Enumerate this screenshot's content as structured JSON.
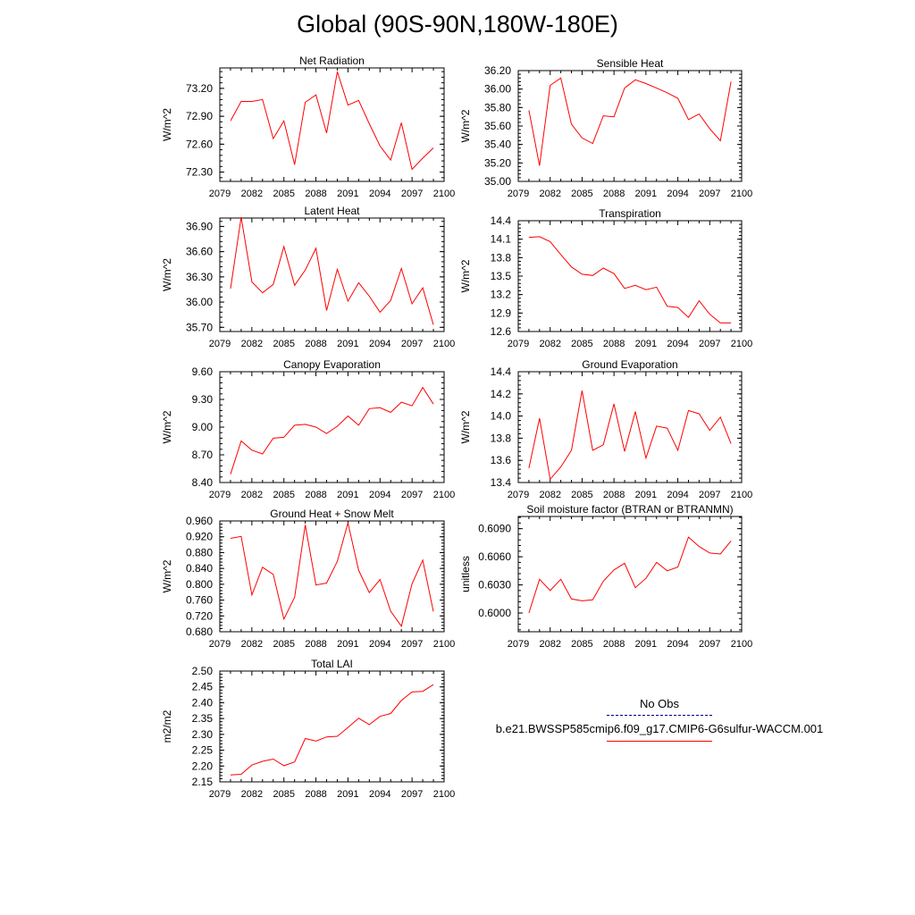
{
  "title": "Global (90S-90N,180W-180E)",
  "series_color": "#ff0000",
  "obs_color": "#00008b",
  "legend": {
    "obs_label": "No Obs",
    "model_label": "b.e21.BWSSP585cmip6.f09_g17.CMIP6-G6sulfur-WACCM.001"
  },
  "chart_data": [
    {
      "type": "line",
      "title": "Net Radiation",
      "ylabel": "W/m^2",
      "xlim": [
        2079,
        2100
      ],
      "ylim": [
        72.2,
        73.42
      ],
      "xticks": [
        "2079",
        "2082",
        "2085",
        "2088",
        "2091",
        "2094",
        "2097",
        "2100"
      ],
      "yticks": [
        "72.30",
        "72.60",
        "72.90",
        "73.20"
      ],
      "x": [
        2080,
        2081,
        2082,
        2083,
        2084,
        2085,
        2086,
        2087,
        2088,
        2089,
        2090,
        2091,
        2092,
        2093,
        2094,
        2095,
        2096,
        2097,
        2098,
        2099
      ],
      "y": [
        72.85,
        73.06,
        73.06,
        73.08,
        72.66,
        72.85,
        72.38,
        73.05,
        73.13,
        72.72,
        73.38,
        73.02,
        73.07,
        72.82,
        72.58,
        72.43,
        72.83,
        72.33,
        72.45,
        72.56
      ]
    },
    {
      "type": "line",
      "title": "Sensible Heat",
      "ylabel": "W/m^2",
      "xlim": [
        2079,
        2100
      ],
      "ylim": [
        35.0,
        36.2
      ],
      "xticks": [
        "2079",
        "2082",
        "2085",
        "2088",
        "2091",
        "2094",
        "2097",
        "2100"
      ],
      "yticks": [
        "35.00",
        "35.20",
        "35.40",
        "35.60",
        "35.80",
        "36.00",
        "36.20"
      ],
      "x": [
        2080,
        2081,
        2082,
        2083,
        2084,
        2085,
        2086,
        2087,
        2088,
        2089,
        2090,
        2091,
        2092,
        2093,
        2094,
        2095,
        2096,
        2097,
        2098,
        2099
      ],
      "y": [
        35.77,
        35.17,
        36.04,
        36.12,
        35.62,
        35.47,
        35.41,
        35.71,
        35.7,
        36.01,
        36.1,
        36.06,
        36.01,
        35.96,
        35.9,
        35.67,
        35.73,
        35.57,
        35.44,
        36.08
      ]
    },
    {
      "type": "line",
      "title": "Latent Heat",
      "ylabel": "W/m^2",
      "xlim": [
        2079,
        2100
      ],
      "ylim": [
        35.65,
        37.0
      ],
      "xticks": [
        "2079",
        "2082",
        "2085",
        "2088",
        "2091",
        "2094",
        "2097",
        "2100"
      ],
      "yticks": [
        "35.70",
        "36.00",
        "36.30",
        "36.60",
        "36.90"
      ],
      "x": [
        2080,
        2081,
        2082,
        2083,
        2084,
        2085,
        2086,
        2087,
        2088,
        2089,
        2090,
        2091,
        2092,
        2093,
        2094,
        2095,
        2096,
        2097,
        2098,
        2099
      ],
      "y": [
        36.16,
        37.01,
        36.24,
        36.11,
        36.21,
        36.66,
        36.2,
        36.38,
        36.64,
        35.9,
        36.39,
        36.01,
        36.23,
        36.07,
        35.88,
        36.02,
        36.4,
        35.98,
        36.17,
        35.73
      ]
    },
    {
      "type": "line",
      "title": "Transpiration",
      "ylabel": "W/m^2",
      "xlim": [
        2079,
        2100
      ],
      "ylim": [
        12.6,
        14.4
      ],
      "xticks": [
        "2079",
        "2082",
        "2085",
        "2088",
        "2091",
        "2094",
        "2097",
        "2100"
      ],
      "yticks": [
        "12.6",
        "12.9",
        "13.2",
        "13.5",
        "13.8",
        "14.1",
        "14.4"
      ],
      "x": [
        2080,
        2081,
        2082,
        2083,
        2084,
        2085,
        2086,
        2087,
        2088,
        2089,
        2090,
        2091,
        2092,
        2093,
        2094,
        2095,
        2096,
        2097,
        2098,
        2099
      ],
      "y": [
        14.13,
        14.14,
        14.06,
        13.85,
        13.65,
        13.53,
        13.51,
        13.63,
        13.54,
        13.3,
        13.35,
        13.28,
        13.32,
        13.01,
        12.99,
        12.83,
        13.1,
        12.88,
        12.74,
        12.74
      ]
    },
    {
      "type": "line",
      "title": "Canopy Evaporation",
      "ylabel": "W/m^2",
      "xlim": [
        2079,
        2100
      ],
      "ylim": [
        8.4,
        9.6
      ],
      "xticks": [
        "2079",
        "2082",
        "2085",
        "2088",
        "2091",
        "2094",
        "2097",
        "2100"
      ],
      "yticks": [
        "8.40",
        "8.70",
        "9.00",
        "9.30",
        "9.60"
      ],
      "x": [
        2080,
        2081,
        2082,
        2083,
        2084,
        2085,
        2086,
        2087,
        2088,
        2089,
        2090,
        2091,
        2092,
        2093,
        2094,
        2095,
        2096,
        2097,
        2098,
        2099
      ],
      "y": [
        8.49,
        8.85,
        8.75,
        8.71,
        8.88,
        8.89,
        9.02,
        9.03,
        9.0,
        8.93,
        9.01,
        9.12,
        9.02,
        9.2,
        9.21,
        9.16,
        9.27,
        9.23,
        9.43,
        9.25
      ]
    },
    {
      "type": "line",
      "title": "Ground Evaporation",
      "ylabel": "W/m^2",
      "xlim": [
        2079,
        2100
      ],
      "ylim": [
        13.4,
        14.4
      ],
      "xticks": [
        "2079",
        "2082",
        "2085",
        "2088",
        "2091",
        "2094",
        "2097",
        "2100"
      ],
      "yticks": [
        "13.4",
        "13.6",
        "13.8",
        "14.0",
        "14.2",
        "14.4"
      ],
      "x": [
        2080,
        2081,
        2082,
        2083,
        2084,
        2085,
        2086,
        2087,
        2088,
        2089,
        2090,
        2091,
        2092,
        2093,
        2094,
        2095,
        2096,
        2097,
        2098,
        2099
      ],
      "y": [
        13.53,
        13.98,
        13.43,
        13.54,
        13.69,
        14.23,
        13.69,
        13.74,
        14.11,
        13.68,
        14.04,
        13.62,
        13.91,
        13.89,
        13.69,
        14.05,
        14.02,
        13.87,
        13.99,
        13.75
      ]
    },
    {
      "type": "line",
      "title": "Ground Heat + Snow Melt",
      "ylabel": "W/m^2",
      "xlim": [
        2079,
        2100
      ],
      "ylim": [
        0.68,
        0.96
      ],
      "xticks": [
        "2079",
        "2082",
        "2085",
        "2088",
        "2091",
        "2094",
        "2097",
        "2100"
      ],
      "yticks": [
        "0.680",
        "0.720",
        "0.760",
        "0.800",
        "0.840",
        "0.880",
        "0.920",
        "0.960"
      ],
      "x": [
        2080,
        2081,
        2082,
        2083,
        2084,
        2085,
        2086,
        2087,
        2088,
        2089,
        2090,
        2091,
        2092,
        2093,
        2094,
        2095,
        2096,
        2097,
        2098,
        2099
      ],
      "y": [
        0.916,
        0.921,
        0.773,
        0.843,
        0.825,
        0.712,
        0.767,
        0.95,
        0.798,
        0.803,
        0.858,
        0.955,
        0.835,
        0.779,
        0.812,
        0.732,
        0.694,
        0.801,
        0.861,
        0.731
      ]
    },
    {
      "type": "line",
      "title": "Soil moisture factor (BTRAN or BTRANMN)",
      "ylabel": "unitless",
      "xlim": [
        2079,
        2100
      ],
      "ylim": [
        0.598,
        0.6103
      ],
      "xticks": [
        "2079",
        "2082",
        "2085",
        "2088",
        "2091",
        "2094",
        "2097",
        "2100"
      ],
      "yticks": [
        "0.6000",
        "0.6030",
        "0.6060",
        "0.6090"
      ],
      "x": [
        2080,
        2081,
        2082,
        2083,
        2084,
        2085,
        2086,
        2087,
        2088,
        2089,
        2090,
        2091,
        2092,
        2093,
        2094,
        2095,
        2096,
        2097,
        2098,
        2099
      ],
      "y": [
        0.6,
        0.6036,
        0.6024,
        0.6036,
        0.6015,
        0.6013,
        0.6014,
        0.6034,
        0.6046,
        0.6053,
        0.6027,
        0.6037,
        0.6054,
        0.6045,
        0.6049,
        0.6081,
        0.6071,
        0.6064,
        0.6063,
        0.6077
      ]
    },
    {
      "type": "line",
      "title": "Total LAI",
      "ylabel": "m2/m2",
      "xlim": [
        2079,
        2100
      ],
      "ylim": [
        2.15,
        2.5
      ],
      "xticks": [
        "2079",
        "2082",
        "2085",
        "2088",
        "2091",
        "2094",
        "2097",
        "2100"
      ],
      "yticks": [
        "2.15",
        "2.20",
        "2.25",
        "2.30",
        "2.35",
        "2.40",
        "2.45",
        "2.50"
      ],
      "x": [
        2080,
        2081,
        2082,
        2083,
        2084,
        2085,
        2086,
        2087,
        2088,
        2089,
        2090,
        2091,
        2092,
        2093,
        2094,
        2095,
        2096,
        2097,
        2098,
        2099
      ],
      "y": [
        2.172,
        2.174,
        2.203,
        2.215,
        2.222,
        2.201,
        2.213,
        2.287,
        2.279,
        2.292,
        2.294,
        2.322,
        2.351,
        2.331,
        2.357,
        2.366,
        2.407,
        2.434,
        2.436,
        2.457
      ]
    }
  ]
}
